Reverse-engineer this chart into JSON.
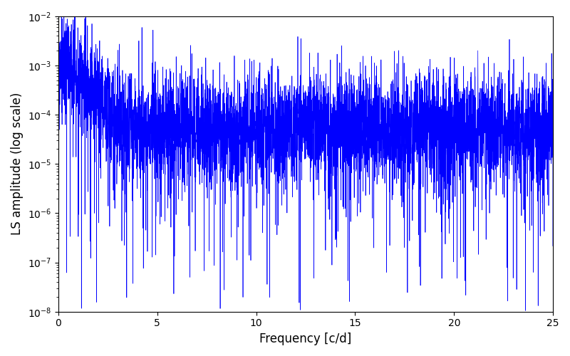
{
  "xlabel": "Frequency [c/d]",
  "ylabel": "LS amplitude (log scale)",
  "xlim": [
    0,
    25
  ],
  "ylim_log": [
    -8,
    -2
  ],
  "line_color": "#0000ff",
  "line_width": 0.5,
  "background_color": "#ffffff",
  "figsize": [
    8.0,
    5.0
  ],
  "dpi": 100,
  "n_points": 5000,
  "freq_max": 25.0,
  "seed": 99
}
